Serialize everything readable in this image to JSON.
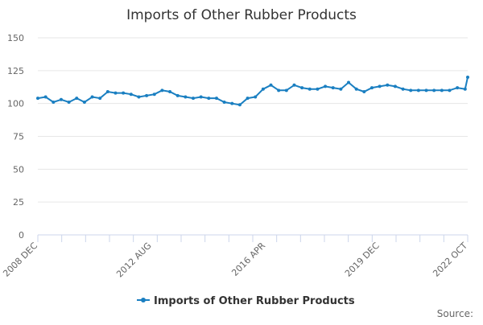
{
  "chart_data": {
    "type": "line",
    "title": "Imports of Other Rubber Products",
    "xlabel": "",
    "ylabel": "",
    "ylim": [
      0,
      150
    ],
    "yticks": [
      0,
      25,
      50,
      75,
      100,
      125,
      150
    ],
    "xtick_labels": [
      "2008 DEC",
      "2012 AUG",
      "2016 APR",
      "2019 DEC",
      "2022 OCT"
    ],
    "xtick_label_dates": [
      "2008-12",
      "2012-08",
      "2016-04",
      "2019-12",
      "2022-10"
    ],
    "grid": true,
    "legend_position": "bottom-center",
    "source_text": "Source:",
    "series": [
      {
        "name": "Imports of Other Rubber Products",
        "color": "#1a7fc1",
        "x": [
          "2008-12",
          "2009-03",
          "2009-06",
          "2009-09",
          "2009-12",
          "2010-03",
          "2010-06",
          "2010-09",
          "2010-12",
          "2011-03",
          "2011-06",
          "2011-09",
          "2011-12",
          "2012-03",
          "2012-06",
          "2012-09",
          "2012-12",
          "2013-03",
          "2013-06",
          "2013-09",
          "2013-12",
          "2014-03",
          "2014-06",
          "2014-09",
          "2014-12",
          "2015-03",
          "2015-06",
          "2015-09",
          "2015-12",
          "2016-03",
          "2016-06",
          "2016-09",
          "2016-12",
          "2017-03",
          "2017-06",
          "2017-09",
          "2017-12",
          "2018-03",
          "2018-06",
          "2018-09",
          "2018-12",
          "2019-03",
          "2019-06",
          "2019-09",
          "2019-12",
          "2020-03",
          "2020-06",
          "2020-09",
          "2020-12",
          "2021-03",
          "2021-06",
          "2021-09",
          "2021-12",
          "2022-03",
          "2022-06",
          "2022-09",
          "2022-10"
        ],
        "values": [
          104,
          105,
          101,
          103,
          101,
          104,
          101,
          105,
          104,
          109,
          108,
          108,
          107,
          105,
          106,
          107,
          110,
          109,
          106,
          105,
          104,
          105,
          104,
          104,
          101,
          100,
          99,
          104,
          105,
          111,
          114,
          110,
          110,
          114,
          112,
          111,
          111,
          113,
          112,
          111,
          116,
          111,
          109,
          112,
          113,
          114,
          113,
          111,
          110,
          110,
          110,
          110,
          110,
          110,
          112,
          111,
          120
        ]
      }
    ]
  }
}
